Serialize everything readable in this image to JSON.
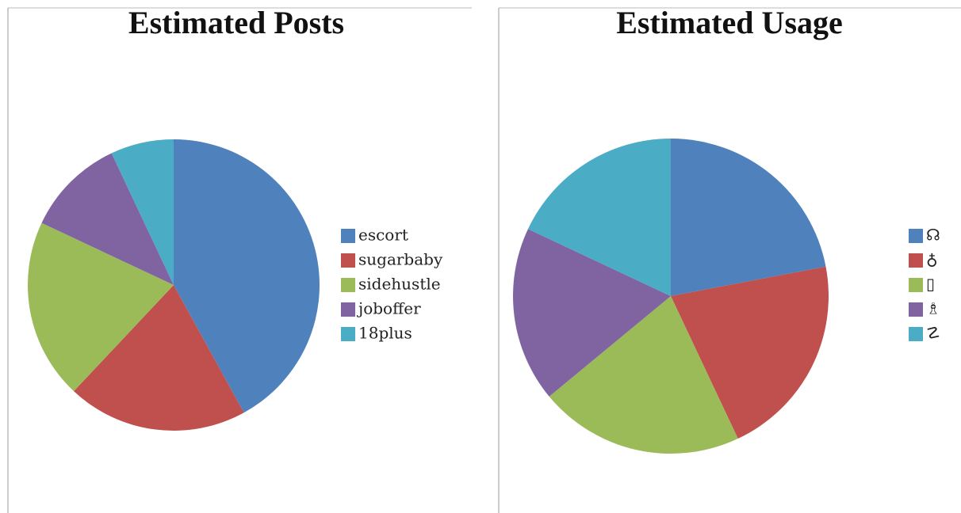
{
  "chart_data": [
    {
      "type": "pie",
      "title": "Estimated Posts",
      "categories": [
        "escort",
        "sugarbaby",
        "sidehustle",
        "joboffer",
        "18plus"
      ],
      "values": [
        42,
        20,
        20,
        11,
        7
      ],
      "colors": [
        "#4f81bd",
        "#c0504d",
        "#9bbb59",
        "#8064a2",
        "#4bacc6"
      ]
    },
    {
      "type": "pie",
      "title": "Estimated Usage",
      "categories": [
        "☊",
        "♁",
        "▯",
        "♗",
        "☡"
      ],
      "values": [
        22,
        21,
        21,
        18,
        18
      ],
      "colors": [
        "#4f81bd",
        "#c0504d",
        "#9bbb59",
        "#8064a2",
        "#4bacc6"
      ]
    }
  ]
}
